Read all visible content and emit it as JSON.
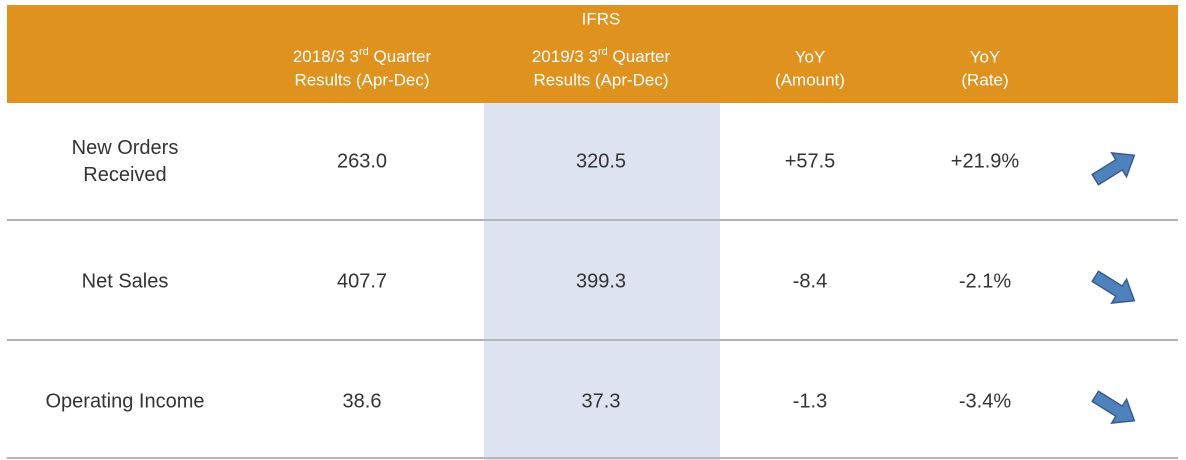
{
  "header": {
    "title": "IFRS",
    "columns": [
      {
        "line1": "2018/3 3",
        "sup": "rd",
        "line1_end": " Quarter",
        "line2": "Results  (Apr-Dec)"
      },
      {
        "line1": "2019/3  3",
        "sup": "rd",
        "line1_end": " Quarter",
        "line2": "Results  (Apr-Dec)"
      },
      {
        "line1": "YoY",
        "line2": "(Amount)"
      },
      {
        "line1": "YoY",
        "line2": "(Rate)"
      }
    ]
  },
  "table": {
    "rows": [
      {
        "label": [
          "New Orders",
          "Received"
        ],
        "cells": [
          "263.0",
          "320.5",
          "+57.5",
          "+21.9%"
        ],
        "trend": "up"
      },
      {
        "label": [
          "Net Sales"
        ],
        "cells": [
          "407.7",
          "399.3",
          "-8.4",
          "-2.1%"
        ],
        "trend": "down"
      },
      {
        "label": [
          "Operating Income"
        ],
        "cells": [
          "38.6",
          "37.3",
          "-1.3",
          "-3.4%"
        ],
        "trend": "down"
      }
    ]
  }
}
